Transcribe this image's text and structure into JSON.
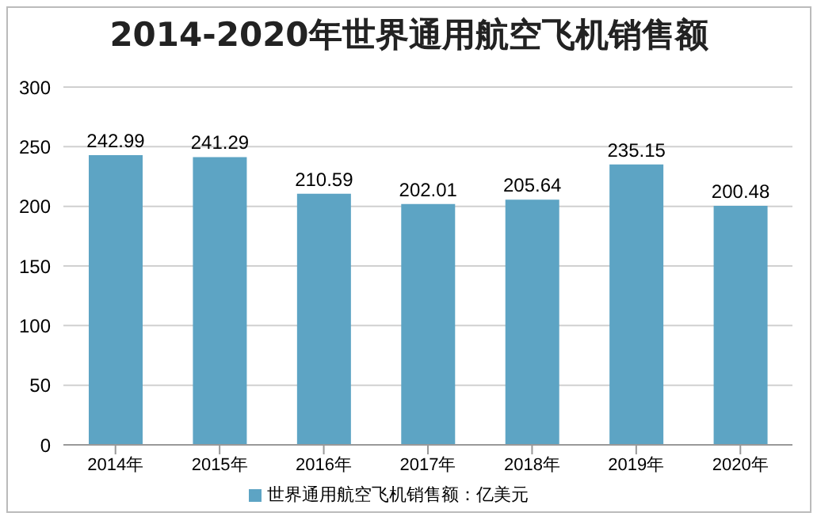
{
  "chart_data": {
    "type": "bar",
    "title": "2014-2020年世界通用航空飞机销售额",
    "categories": [
      "2014年",
      "2015年",
      "2016年",
      "2017年",
      "2018年",
      "2019年",
      "2020年"
    ],
    "series": [
      {
        "name": "世界通用航空飞机销售额：亿美元",
        "color": "#5da4c4",
        "values": [
          242.99,
          241.29,
          210.59,
          202.01,
          205.64,
          235.15,
          200.48
        ]
      }
    ],
    "ylim": [
      0,
      300
    ],
    "yticks": [
      0,
      50,
      100,
      150,
      200,
      250,
      300
    ],
    "grid": "y",
    "legend": "bottom",
    "data_labels": true
  }
}
